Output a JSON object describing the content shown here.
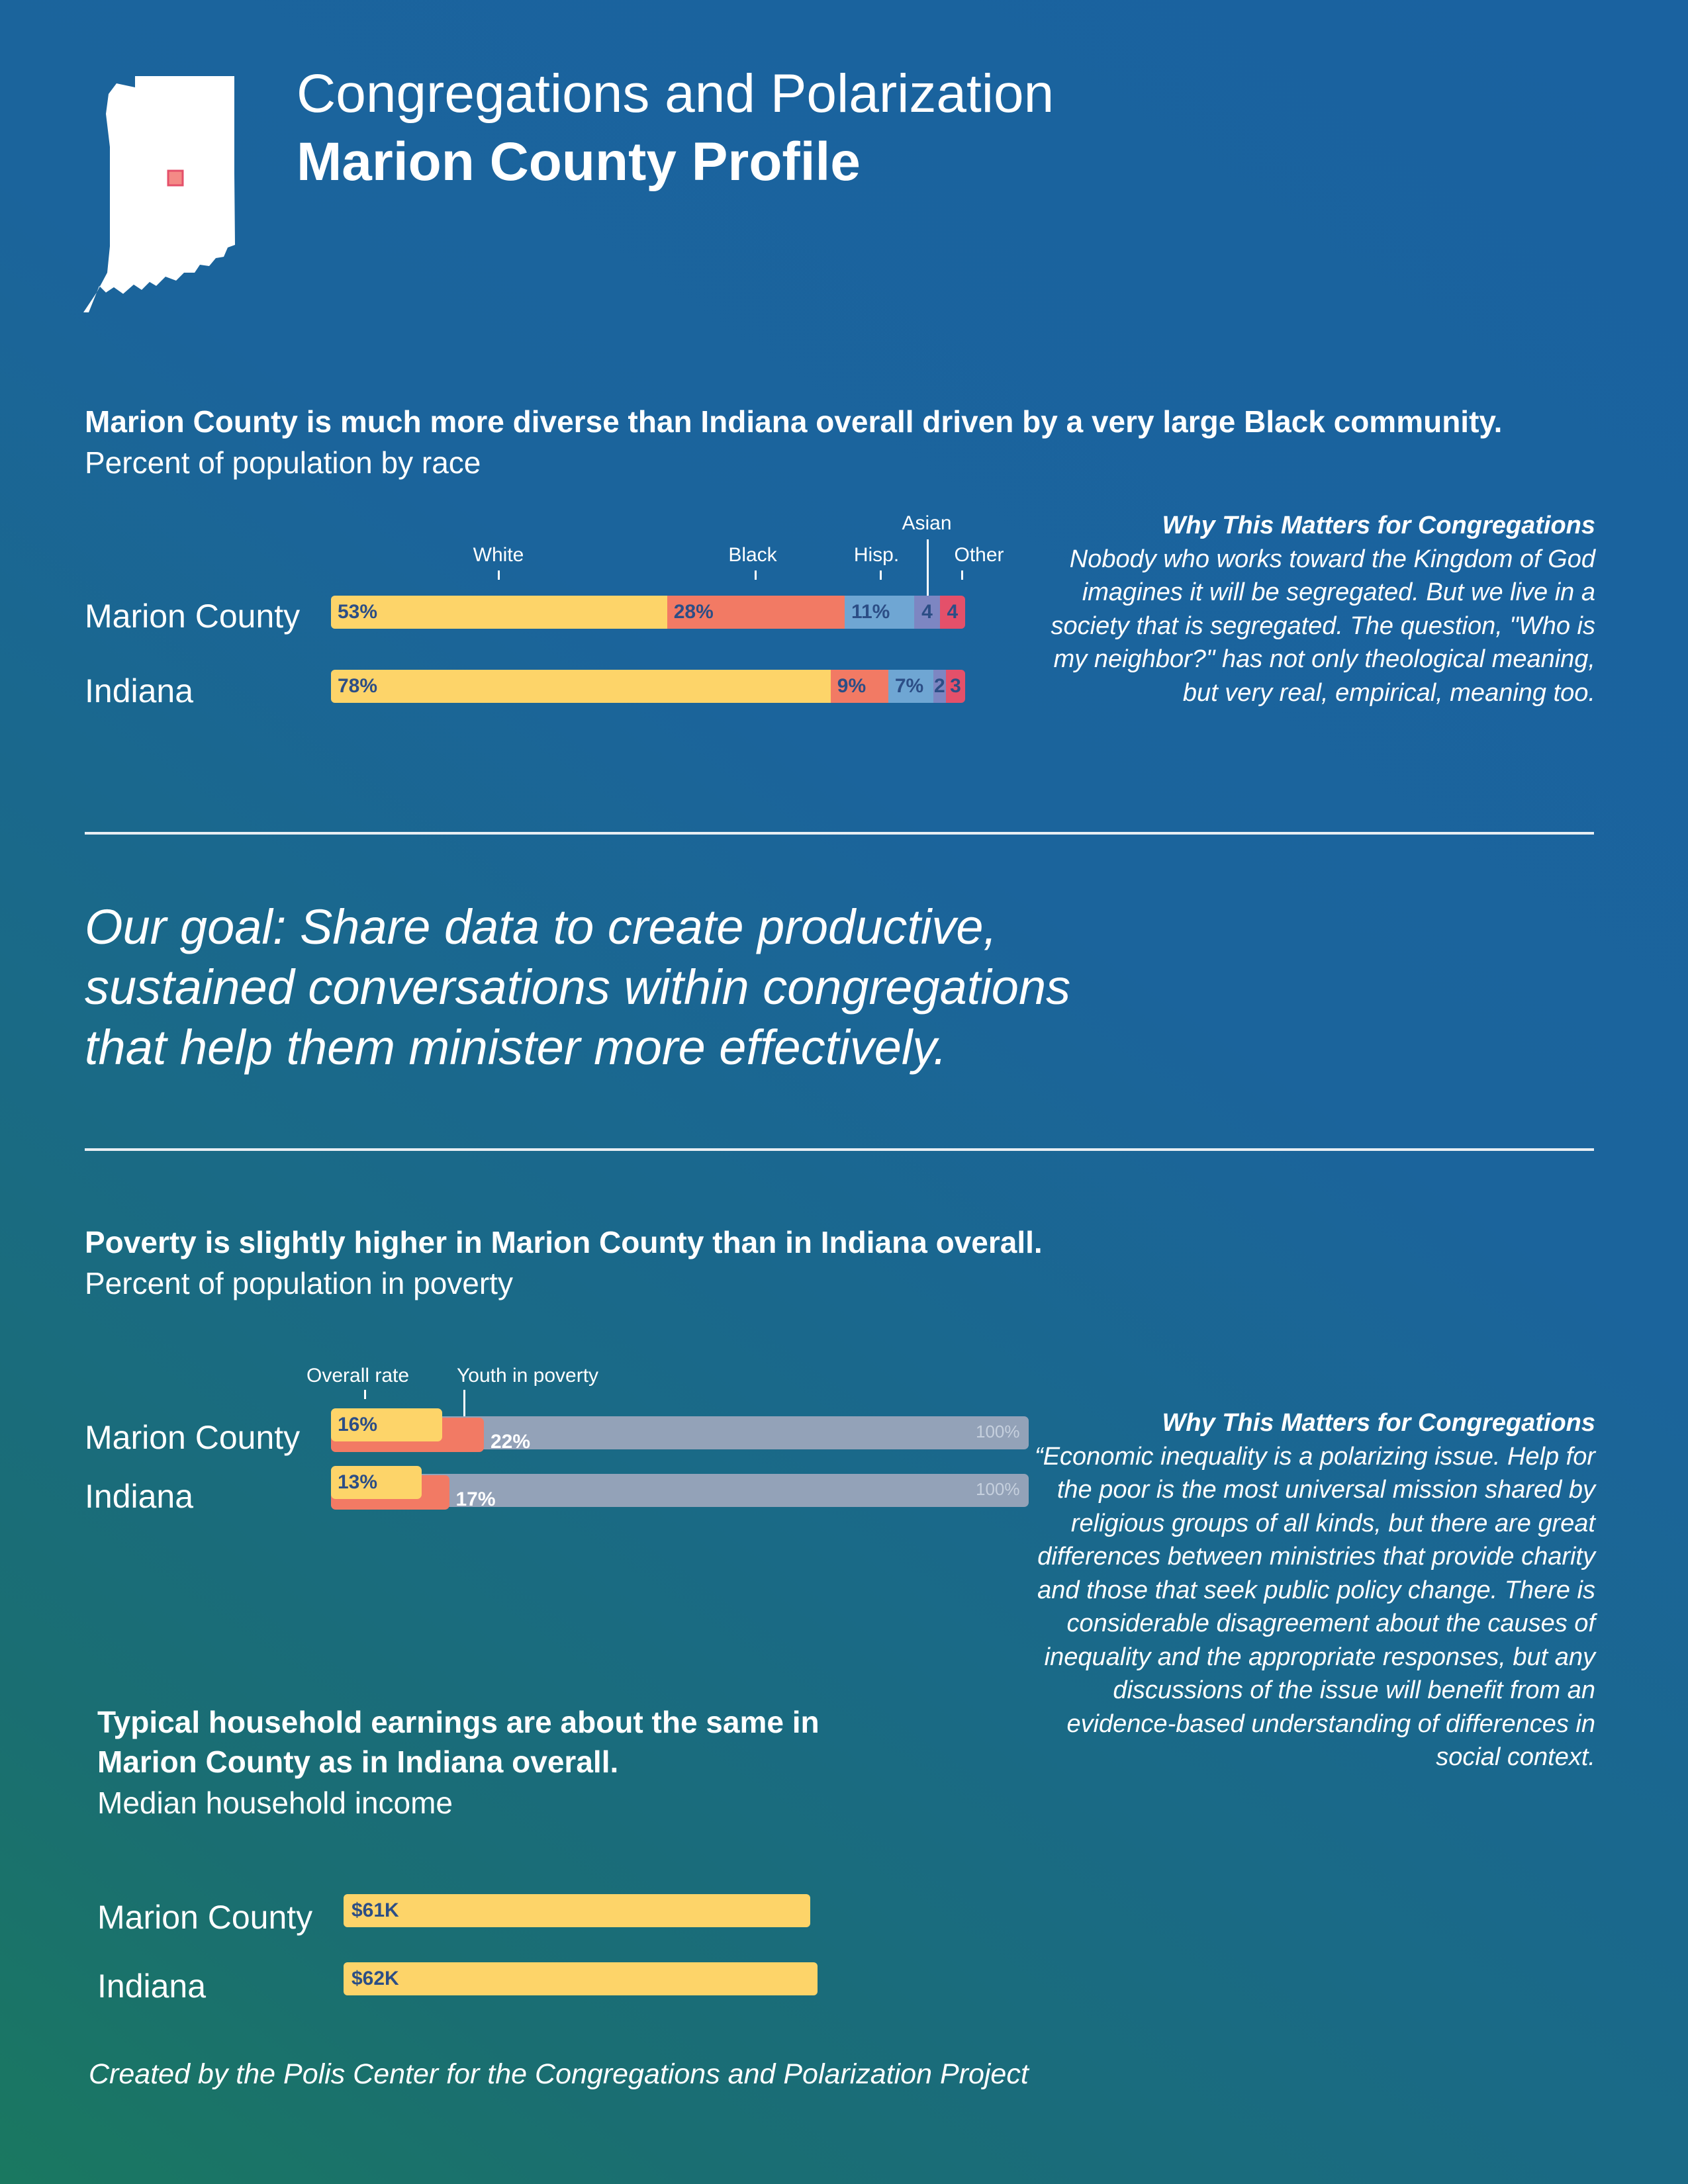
{
  "header": {
    "title_line1": "Congregations and Polarization",
    "title_line2": "Marion County Profile"
  },
  "race_section": {
    "headline": "Marion County is much more diverse than Indiana overall driven by a very large Black community.",
    "subtitle": "Percent of population by race"
  },
  "race_side": {
    "heading": "Why This Matters for Congregations",
    "body": "Nobody who works toward the Kingdom of God imagines it will be segregated. But we live in a society that is segregated. The question, \"Who is my neighbor?\" has not only theological meaning, but very real, empirical, meaning too."
  },
  "goal": {
    "line1": "Our goal: Share data to create productive,",
    "line2": "sustained conversations within congregations",
    "line3": "that help them minister more effectively."
  },
  "poverty_section": {
    "headline": "Poverty is slightly higher in Marion County than in Indiana overall.",
    "subtitle": "Percent of population in poverty"
  },
  "poverty_side": {
    "heading": "Why This Matters for Congregations",
    "body": "“Economic inequality is a polarizing issue.  Help for the poor is the most universal mission shared by religious groups of all kinds, but there are great differences between ministries that provide charity and those that seek public policy change.  There is considerable disagreement about the causes of inequality and the appropriate responses, but any discussions of the issue will benefit from an evidence-based understanding of differences in social context."
  },
  "income_section": {
    "headline_line1": "Typical household earnings are about the same in",
    "headline_line2": "Marion County as in Indiana overall.",
    "subtitle": "Median household income"
  },
  "footer": "Created by the Polis Center for the Congregations and Polarization Project",
  "colors": {
    "white_group": "#fdd469",
    "black_group": "#f27a64",
    "hispanic_group": "#6fa6d3",
    "asian_group": "#7d86c2",
    "other_group": "#e4506a",
    "track": "#93a2b8",
    "label_dark": "#2c4e86",
    "state_outline": "#ffffff",
    "county_marker": "#f48a86"
  },
  "chart_data": [
    {
      "type": "bar",
      "stacked": true,
      "orientation": "horizontal",
      "categories": [
        "Marion County",
        "Indiana"
      ],
      "series": [
        {
          "name": "White",
          "values": [
            53,
            78
          ],
          "labels": [
            "53%",
            "78%"
          ]
        },
        {
          "name": "Black",
          "values": [
            28,
            9
          ],
          "labels": [
            "28%",
            "9%"
          ]
        },
        {
          "name": "Hisp.",
          "values": [
            11,
            7
          ],
          "labels": [
            "11%",
            "7%"
          ]
        },
        {
          "name": "Asian",
          "values": [
            4,
            2
          ],
          "labels": [
            "4",
            "2"
          ]
        },
        {
          "name": "Other",
          "values": [
            4,
            3
          ],
          "labels": [
            "4",
            "3"
          ]
        }
      ],
      "xlim": [
        0,
        100
      ]
    },
    {
      "type": "bar",
      "orientation": "horizontal",
      "categories": [
        "Marion County",
        "Indiana"
      ],
      "series": [
        {
          "name": "Overall rate",
          "values": [
            16,
            13
          ],
          "labels": [
            "16%",
            "13%"
          ]
        },
        {
          "name": "Youth in poverty",
          "values": [
            22,
            17
          ],
          "labels": [
            "22%",
            "17%"
          ]
        }
      ],
      "track_label": "100%",
      "xlim": [
        0,
        100
      ]
    },
    {
      "type": "bar",
      "orientation": "horizontal",
      "categories": [
        "Marion County",
        "Indiana"
      ],
      "values": [
        61,
        62
      ],
      "labels": [
        "$61K",
        "$62K"
      ]
    }
  ]
}
